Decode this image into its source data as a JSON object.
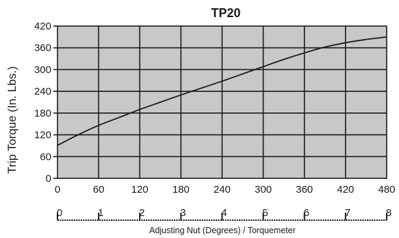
{
  "chart_data": {
    "type": "line",
    "title": "TP20",
    "ylabel": "Trip Torque (In. Lbs.)",
    "xlabel": "",
    "secondary_xlabel": "Adjusting Nut (Degrees) / Torquemeter",
    "xlim": [
      0,
      480
    ],
    "ylim": [
      0,
      420
    ],
    "x_ticks": [
      "0",
      "60",
      "120",
      "180",
      "240",
      "300",
      "360",
      "420",
      "480"
    ],
    "y_ticks": [
      "0",
      "60",
      "120",
      "180",
      "240",
      "300",
      "360",
      "420"
    ],
    "secondary_x_ticks": [
      "0",
      "1",
      "2",
      "3",
      "4",
      "5",
      "6",
      "7",
      "8"
    ],
    "grid": true,
    "plot_background": "#c8c8c8",
    "line_color": "#1a1a1a",
    "x": [
      0,
      30,
      60,
      90,
      120,
      150,
      180,
      210,
      240,
      270,
      300,
      330,
      360,
      390,
      420,
      450,
      480
    ],
    "values": [
      91,
      120,
      146,
      168,
      190,
      210,
      230,
      249,
      268,
      288,
      308,
      328,
      346,
      362,
      374,
      383,
      390
    ]
  }
}
